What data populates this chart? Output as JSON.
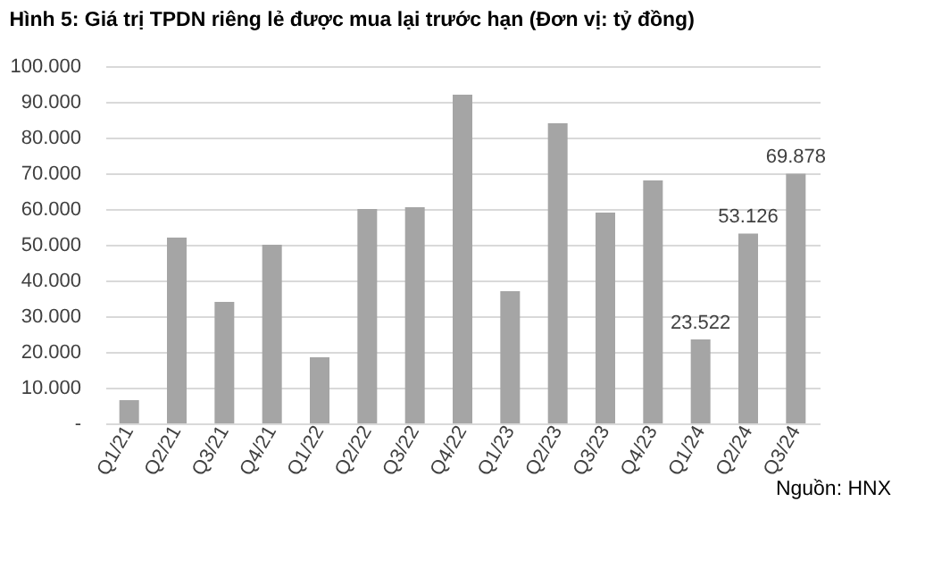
{
  "chart_data": {
    "type": "bar",
    "title": "Hình 5: Giá trị TPDN riêng lẻ được mua lại trước hạn (Đơn vị: tỷ đồng)",
    "categories": [
      "Q1/21",
      "Q2/21",
      "Q3/21",
      "Q4/21",
      "Q1/22",
      "Q2/22",
      "Q3/22",
      "Q4/22",
      "Q1/23",
      "Q2/23",
      "Q3/23",
      "Q4/23",
      "Q1/24",
      "Q2/24",
      "Q3/24"
    ],
    "values": [
      6500,
      52000,
      34000,
      50000,
      18500,
      60000,
      60500,
      92000,
      37000,
      84000,
      59000,
      68000,
      23522,
      53126,
      69878
    ],
    "value_labels": [
      null,
      null,
      null,
      null,
      null,
      null,
      null,
      null,
      null,
      null,
      null,
      null,
      "23.522",
      "53.126",
      "69.878"
    ],
    "color": "#a5a5a5",
    "ylim": [
      0,
      100000
    ],
    "yticks": [
      {
        "value": 0,
        "label": "-"
      },
      {
        "value": 10000,
        "label": "10.000"
      },
      {
        "value": 20000,
        "label": "20.000"
      },
      {
        "value": 30000,
        "label": "30.000"
      },
      {
        "value": 40000,
        "label": "40.000"
      },
      {
        "value": 50000,
        "label": "50.000"
      },
      {
        "value": 60000,
        "label": "60.000"
      },
      {
        "value": 70000,
        "label": "70.000"
      },
      {
        "value": 80000,
        "label": "80.000"
      },
      {
        "value": 90000,
        "label": "90.000"
      },
      {
        "value": 100000,
        "label": "100.000"
      }
    ],
    "grid": "y",
    "annotations": [
      "Nguồn: HNX"
    ]
  }
}
